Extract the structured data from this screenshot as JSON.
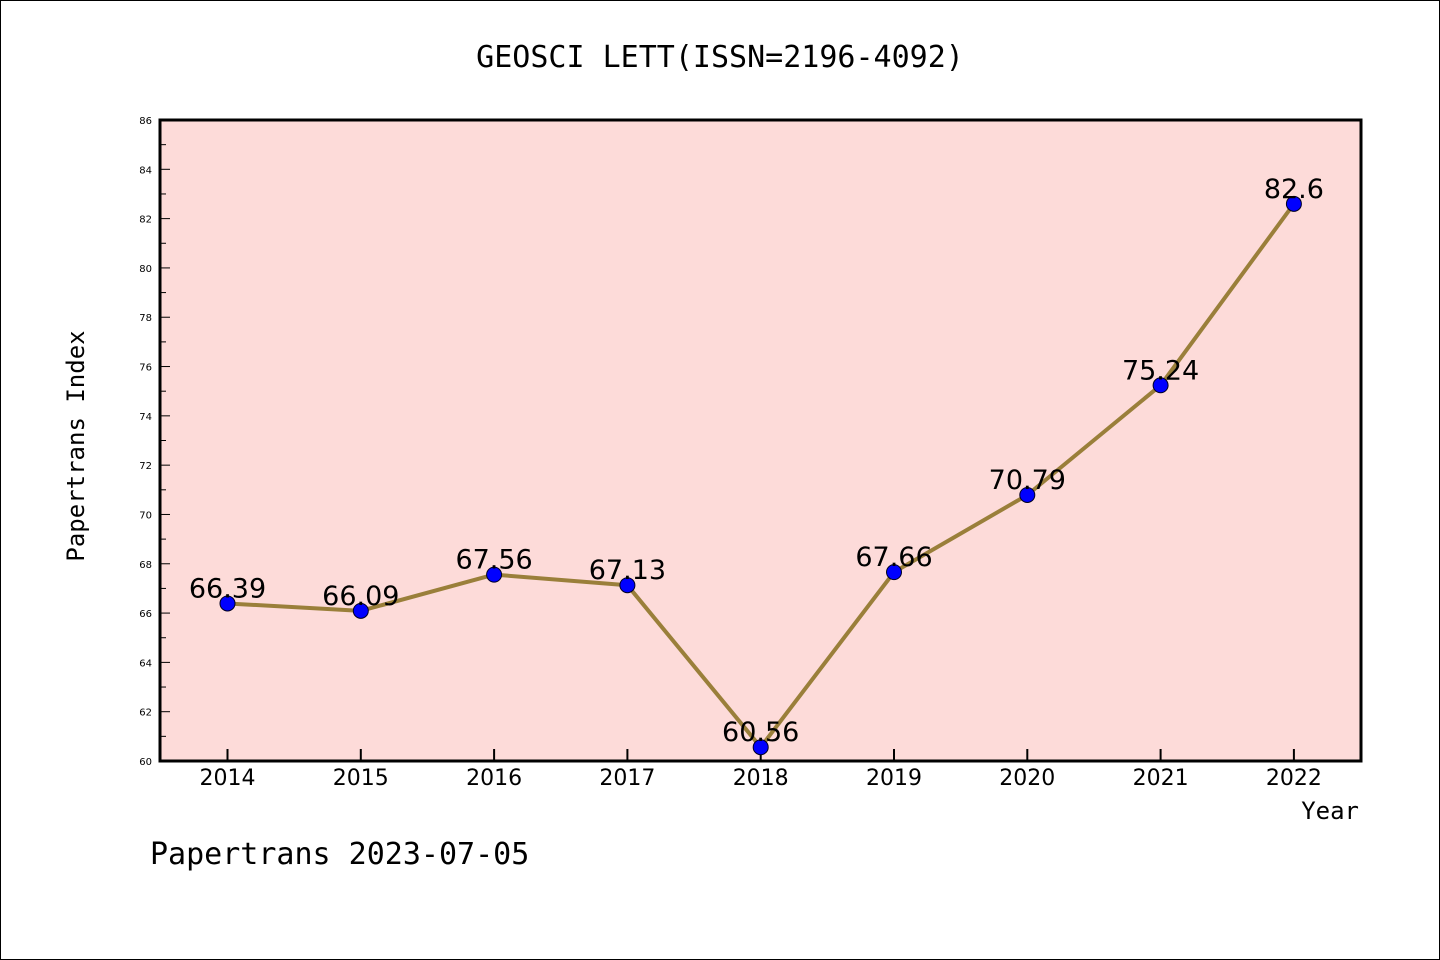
{
  "chart_data": {
    "type": "line",
    "title": "GEOSCI LETT(ISSN=2196-4092)",
    "xlabel": "Year",
    "ylabel": "Papertrans Index",
    "categories": [
      "2014",
      "2015",
      "2016",
      "2017",
      "2018",
      "2019",
      "2020",
      "2021",
      "2022"
    ],
    "series": [
      {
        "values": [
          66.39,
          66.09,
          67.56,
          67.13,
          60.56,
          67.66,
          70.79,
          75.24,
          82.6
        ],
        "value_labels": [
          "66.39",
          "66.09",
          "67.56",
          "67.13",
          "60.56",
          "67.66",
          "70.79",
          "75.24",
          "82.6"
        ]
      }
    ],
    "ylim": [
      60,
      86
    ],
    "yticks": [
      "60",
      "62",
      "64",
      "66",
      "68",
      "70",
      "72",
      "74",
      "76",
      "78",
      "80",
      "82",
      "84",
      "86"
    ],
    "grid": false,
    "legend": "none",
    "colors": {
      "plot_background": "#fddbd9",
      "line": "#9a7f3a",
      "marker": "#0000ff"
    }
  },
  "footer": "Papertrans 2023-07-05"
}
